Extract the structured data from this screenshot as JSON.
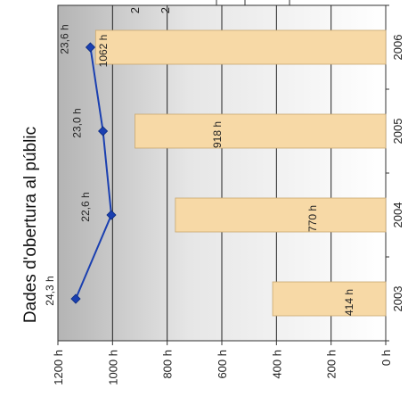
{
  "chart_data": {
    "type": "bar",
    "orientation": "rotated-90-ccw",
    "title": "Dades d'obertura al públic",
    "categories": [
      "2003",
      "2004",
      "2005",
      "2006"
    ],
    "bar_series": {
      "values": [
        414,
        770,
        918,
        1062
      ],
      "labels": [
        "414 h",
        "770 h",
        "918 h",
        "1062 h"
      ],
      "color": "#f7d9a6"
    },
    "line_series": {
      "values": [
        24.3,
        22.6,
        23.0,
        23.6
      ],
      "labels": [
        "24,3 h",
        "22,6 h",
        "23,0 h",
        "23,6 h"
      ],
      "color": "#1a3fb0"
    },
    "value_axis": {
      "ticks": [
        0,
        200,
        400,
        600,
        800,
        1000,
        1200
      ],
      "tick_labels": [
        "0 h",
        "200 h",
        "400 h",
        "600 h",
        "800 h",
        "1000 h",
        "1200 h"
      ],
      "range": [
        0,
        1200
      ]
    },
    "secondary_axis_fragment": {
      "tick_labels": [
        "2",
        "2"
      ]
    },
    "grid": true,
    "legend": "none"
  }
}
